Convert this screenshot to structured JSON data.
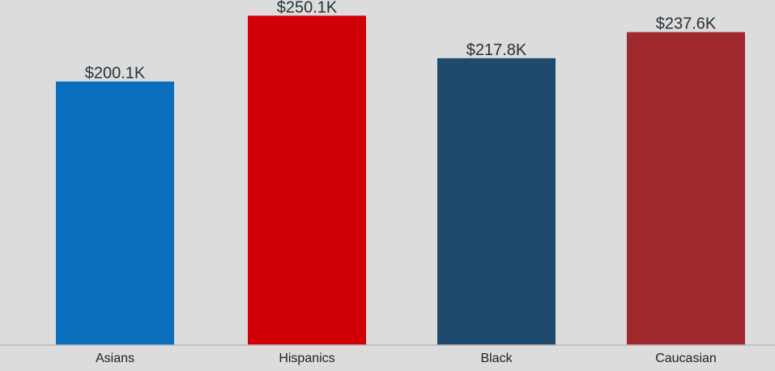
{
  "chart_data": {
    "type": "bar",
    "categories": [
      "Asians",
      "Hispanics",
      "Black",
      "Caucasian"
    ],
    "values": [
      200.1,
      250.1,
      217.8,
      237.6
    ],
    "value_labels": [
      "$200.1K",
      "$250.1K",
      "$217.8K",
      "$237.6K"
    ],
    "bar_colors": [
      "#0a6ebd",
      "#d10007",
      "#1f4a6e",
      "#a0292d"
    ],
    "ylim": [
      0,
      262
    ],
    "grid": false,
    "legend": "none",
    "title": "",
    "xlabel": "",
    "ylabel": ""
  },
  "colors": {
    "background": "#dcdcdc",
    "axis_line": "#b8b8b8"
  }
}
